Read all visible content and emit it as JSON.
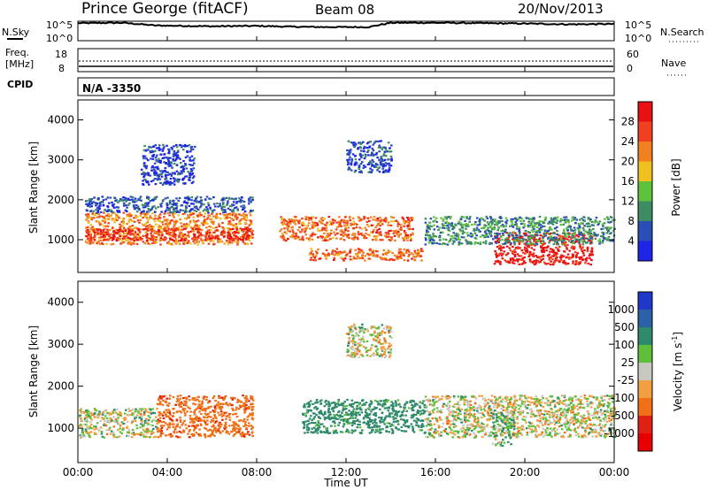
{
  "header": {
    "station": "Prince George (fitACF)",
    "beam": "Beam 08",
    "date": "20/Nov/2013"
  },
  "strips": {
    "nsky_label": "N.Sky",
    "nsky_ticks": [
      "10^5",
      "10^0"
    ],
    "nsearch_label": "N.Search",
    "freq_label_1": "Freq.",
    "freq_label_2": "[MHz]",
    "freq_ticks": [
      "18",
      "8"
    ],
    "nave_label": "Nave",
    "nave_ticks": [
      "60",
      "0"
    ],
    "cpid_label": "CPID",
    "cpid_value": "N/A -3350"
  },
  "axes": {
    "ylabel": "Slant Range [km]",
    "xlabel": "Time UT",
    "yticks": [
      "1000",
      "2000",
      "3000",
      "4000"
    ],
    "xticks": [
      "00:00",
      "04:00",
      "08:00",
      "12:00",
      "16:00",
      "20:00",
      "00:00"
    ]
  },
  "power_scale": {
    "label": "Power [dB]",
    "ticks": [
      "4",
      "8",
      "12",
      "16",
      "20",
      "24",
      "28"
    ],
    "colors": [
      "#1e24e8",
      "#2a4fb4",
      "#3c8c64",
      "#5fc23c",
      "#f0c020",
      "#f08020",
      "#f04020",
      "#e81010"
    ]
  },
  "velocity_scale": {
    "label": "Velocity [m s",
    "label_sup": "-1",
    "label_end": "]",
    "ticks": [
      "1000",
      "500",
      "100",
      "25",
      "-25",
      "-100",
      "-500",
      "-1000"
    ],
    "colors": [
      "#2038c8",
      "#2a62a8",
      "#2e8a6a",
      "#5ec03a",
      "#c8c8c0",
      "#f0a040",
      "#f07018",
      "#e02010",
      "#e80000"
    ]
  },
  "chart_data": [
    {
      "type": "line",
      "title": "N.Sky",
      "x_range_hours": [
        0,
        24
      ],
      "ylim": [
        0,
        5
      ],
      "x": [
        0,
        2,
        3.5,
        6,
        8,
        9.5,
        11,
        13,
        14,
        16,
        18,
        20,
        22,
        24
      ],
      "values": [
        4.5,
        4.6,
        3.9,
        3.7,
        3.8,
        3.6,
        3.5,
        3.5,
        4.6,
        4.6,
        4.5,
        4.4,
        4.2,
        4.3
      ]
    },
    {
      "type": "heatmap",
      "title": "Power [dB]",
      "x_range_hours": [
        0,
        24
      ],
      "y_range_km": [
        180,
        4500
      ],
      "colorbar_range_db": [
        0,
        30
      ],
      "regions": [
        {
          "x": [
            0.3,
            7.8
          ],
          "y": [
            900,
            1700
          ],
          "value": 22
        },
        {
          "x": [
            0.3,
            7.8
          ],
          "y": [
            1000,
            1300
          ],
          "value": 28
        },
        {
          "x": [
            0.3,
            7.8
          ],
          "y": [
            1700,
            2100
          ],
          "value": 6
        },
        {
          "x": [
            2.8,
            5.2
          ],
          "y": [
            2400,
            3400
          ],
          "value": 4
        },
        {
          "x": [
            9,
            15
          ],
          "y": [
            1000,
            1600
          ],
          "value": 24
        },
        {
          "x": [
            10.3,
            15.5
          ],
          "y": [
            500,
            800
          ],
          "value": 24
        },
        {
          "x": [
            12,
            14
          ],
          "y": [
            2700,
            3500
          ],
          "value": 5
        },
        {
          "x": [
            18.6,
            23
          ],
          "y": [
            400,
            1200
          ],
          "value": 30
        },
        {
          "x": [
            15.5,
            24
          ],
          "y": [
            900,
            1600
          ],
          "value": 10
        }
      ]
    },
    {
      "type": "heatmap",
      "title": "Velocity [m s-1]",
      "x_range_hours": [
        0,
        24
      ],
      "y_range_km": [
        180,
        4500
      ],
      "colorbar_range_ms": [
        -1000,
        1000
      ],
      "regions": [
        {
          "x": [
            3.5,
            7.8
          ],
          "y": [
            800,
            1800
          ],
          "value": -400
        },
        {
          "x": [
            0,
            3.5
          ],
          "y": [
            800,
            1500
          ],
          "value": 10
        },
        {
          "x": [
            10,
            15.5
          ],
          "y": [
            900,
            1700
          ],
          "value": 200
        },
        {
          "x": [
            12,
            14
          ],
          "y": [
            2700,
            3500
          ],
          "value": 0
        },
        {
          "x": [
            15.5,
            24
          ],
          "y": [
            800,
            1800
          ],
          "value": 0
        },
        {
          "x": [
            18.5,
            19.5
          ],
          "y": [
            600,
            1400
          ],
          "value": 80
        }
      ]
    }
  ]
}
